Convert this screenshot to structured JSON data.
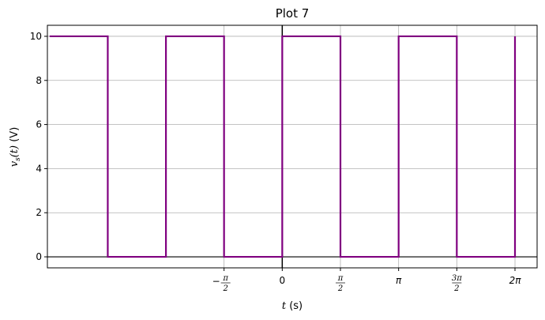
{
  "chart_data": {
    "type": "line",
    "title": "Plot 7",
    "xlabel": {
      "var": "t",
      "unit": " (s)"
    },
    "ylabel": {
      "var": "v",
      "sub": "s",
      "arg": "(t)",
      "unit": " (V)"
    },
    "xlim": [
      -6.34,
      6.88
    ],
    "ylim": [
      -0.5,
      10.5
    ],
    "grid": true,
    "line_color": "#800080",
    "y_ticks": [
      0,
      2,
      4,
      6,
      8,
      10
    ],
    "x_ticks": [
      {
        "value": -1.5708,
        "parts": {
          "sign": "−",
          "num": "π",
          "den": "2"
        }
      },
      {
        "value": 0,
        "label": "0"
      },
      {
        "value": 1.5708,
        "parts": {
          "num": "π",
          "den": "2"
        }
      },
      {
        "value": 3.1416,
        "label": "π",
        "italic": true
      },
      {
        "value": 4.7124,
        "parts": {
          "num": "3π",
          "den": "2"
        }
      },
      {
        "value": 6.2832,
        "label": "2π",
        "italic": true
      }
    ],
    "series": [
      {
        "x": [
          -6.28,
          -4.71,
          -4.71,
          -3.14,
          -3.14,
          -1.571,
          -1.571,
          0,
          0,
          1.571,
          1.571,
          3.142,
          3.142,
          4.712,
          4.712,
          6.283,
          6.283
        ],
        "values": [
          10,
          10,
          0,
          0,
          10,
          10,
          0,
          0,
          10,
          10,
          0,
          0,
          10,
          10,
          0,
          0,
          10
        ]
      }
    ]
  }
}
